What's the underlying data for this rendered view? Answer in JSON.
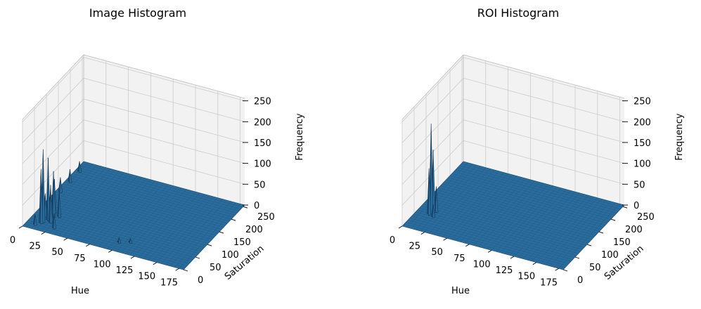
{
  "figure": {
    "background": "#ffffff",
    "pane_color": "#f2f2f2",
    "grid_color": "#cccccc",
    "surface_color": "#2a6c9c",
    "surface_edge_color": "#1a4a70"
  },
  "chart_data": [
    {
      "type": "surface3d",
      "title": "Image Histogram",
      "xlabel": "Hue",
      "ylabel": "Saturation",
      "zlabel": "Frequency",
      "xlim": [
        0,
        180
      ],
      "ylim": [
        0,
        256
      ],
      "zlim": [
        0,
        256
      ],
      "xticks": [
        "0",
        "25",
        "50",
        "75",
        "100",
        "125",
        "150",
        "175"
      ],
      "yticks": [
        "0",
        "50",
        "100",
        "150",
        "200",
        "250"
      ],
      "zticks": [
        "0",
        "50",
        "100",
        "150",
        "200",
        "250"
      ],
      "peaks": [
        {
          "hue": 15,
          "saturation": 30,
          "frequency": 175
        },
        {
          "hue": 18,
          "saturation": 40,
          "frequency": 150
        },
        {
          "hue": 14,
          "saturation": 25,
          "frequency": 130
        },
        {
          "hue": 20,
          "saturation": 55,
          "frequency": 110
        },
        {
          "hue": 22,
          "saturation": 35,
          "frequency": 90
        },
        {
          "hue": 17,
          "saturation": 70,
          "frequency": 80
        },
        {
          "hue": 25,
          "saturation": 60,
          "frequency": 60
        },
        {
          "hue": 12,
          "saturation": 50,
          "frequency": 55
        },
        {
          "hue": 8,
          "saturation": 100,
          "frequency": 40
        },
        {
          "hue": 5,
          "saturation": 140,
          "frequency": 35
        },
        {
          "hue": 5,
          "saturation": 180,
          "frequency": 30
        },
        {
          "hue": 5,
          "saturation": 220,
          "frequency": 25
        },
        {
          "hue": 30,
          "saturation": 20,
          "frequency": 35
        },
        {
          "hue": 10,
          "saturation": 15,
          "frequency": 25
        },
        {
          "hue": 100,
          "saturation": 30,
          "frequency": 12
        },
        {
          "hue": 110,
          "saturation": 40,
          "frequency": 10
        }
      ]
    },
    {
      "type": "surface3d",
      "title": "ROI Histogram",
      "xlabel": "Hue",
      "ylabel": "Saturation",
      "zlabel": "Frequency",
      "xlim": [
        0,
        180
      ],
      "ylim": [
        0,
        256
      ],
      "zlim": [
        0,
        256
      ],
      "xticks": [
        "0",
        "25",
        "50",
        "75",
        "100",
        "125",
        "150",
        "175"
      ],
      "yticks": [
        "0",
        "50",
        "100",
        "150",
        "200",
        "250"
      ],
      "zticks": [
        "0",
        "50",
        "100",
        "150",
        "200",
        "250"
      ],
      "peaks": [
        {
          "hue": 15,
          "saturation": 65,
          "frequency": 215
        },
        {
          "hue": 16,
          "saturation": 70,
          "frequency": 150
        },
        {
          "hue": 14,
          "saturation": 60,
          "frequency": 110
        },
        {
          "hue": 18,
          "saturation": 75,
          "frequency": 60
        },
        {
          "hue": 20,
          "saturation": 55,
          "frequency": 30
        }
      ]
    }
  ]
}
